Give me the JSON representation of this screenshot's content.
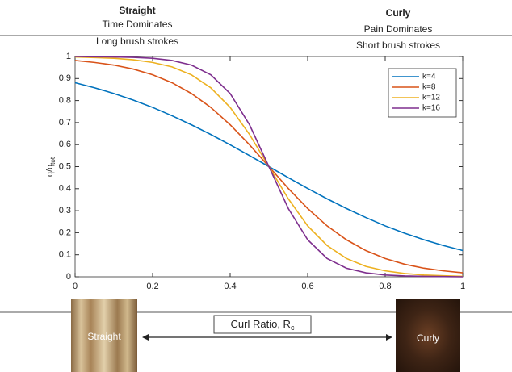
{
  "chart_data": {
    "type": "line",
    "annotations": {
      "left": [
        "Straight",
        "Time Dominates",
        "Long brush strokes"
      ],
      "right": [
        "Curly",
        "Pain Dominates",
        "Short brush strokes"
      ]
    },
    "x_label": {
      "text": "Curl Ratio, R",
      "sub": "c"
    },
    "y_label": {
      "text": "q/q",
      "sub": "tot"
    },
    "photo_labels": [
      "Straight",
      "Curly"
    ],
    "x": [
      0,
      0.05,
      0.1,
      0.15,
      0.2,
      0.25,
      0.3,
      0.35,
      0.4,
      0.45,
      0.5,
      0.55,
      0.6,
      0.65,
      0.7,
      0.75,
      0.8,
      0.85,
      0.9,
      0.95,
      1
    ],
    "series": [
      {
        "name": "k=4",
        "color": "#0072bd",
        "values": [
          0.881,
          0.858,
          0.832,
          0.802,
          0.769,
          0.731,
          0.69,
          0.646,
          0.599,
          0.55,
          0.5,
          0.45,
          0.401,
          0.354,
          0.31,
          0.269,
          0.231,
          0.198,
          0.168,
          0.142,
          0.119
        ]
      },
      {
        "name": "k=8",
        "color": "#d95319",
        "values": [
          0.982,
          0.973,
          0.961,
          0.943,
          0.917,
          0.881,
          0.832,
          0.769,
          0.69,
          0.599,
          0.5,
          0.401,
          0.31,
          0.231,
          0.168,
          0.119,
          0.083,
          0.057,
          0.039,
          0.027,
          0.018
        ]
      },
      {
        "name": "k=12",
        "color": "#edb120",
        "values": [
          0.998,
          0.995,
          0.992,
          0.985,
          0.973,
          0.953,
          0.917,
          0.858,
          0.769,
          0.646,
          0.5,
          0.354,
          0.231,
          0.142,
          0.083,
          0.047,
          0.027,
          0.015,
          0.008,
          0.005,
          0.002
        ]
      },
      {
        "name": "k=16",
        "color": "#7e2f8e",
        "values": [
          1.0,
          0.999,
          0.998,
          0.996,
          0.992,
          0.982,
          0.961,
          0.917,
          0.832,
          0.69,
          0.5,
          0.31,
          0.168,
          0.083,
          0.039,
          0.018,
          0.008,
          0.004,
          0.002,
          0.001,
          0.0
        ]
      }
    ],
    "xlim": [
      0,
      1
    ],
    "xticks": [
      0,
      0.2,
      0.4,
      0.6,
      0.8,
      1
    ],
    "ylim": [
      0,
      1
    ],
    "yticks": [
      0,
      0.1,
      0.2,
      0.3,
      0.4,
      0.5,
      0.6,
      0.7,
      0.8,
      0.9,
      1
    ],
    "grid": false,
    "legend": "top-right"
  }
}
